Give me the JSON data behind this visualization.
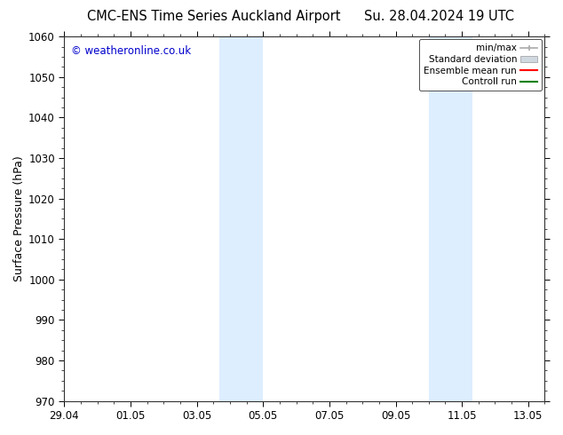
{
  "title_left": "CMC-ENS Time Series Auckland Airport",
  "title_right": "Su. 28.04.2024 19 UTC",
  "ylabel": "Surface Pressure (hPa)",
  "ylim": [
    970,
    1060
  ],
  "yticks": [
    970,
    980,
    990,
    1000,
    1010,
    1020,
    1030,
    1040,
    1050,
    1060
  ],
  "xtick_positions": [
    0,
    2,
    4,
    6,
    8,
    10,
    12,
    14
  ],
  "xtick_labels": [
    "29.04",
    "01.05",
    "03.05",
    "05.05",
    "07.05",
    "09.05",
    "11.05",
    "13.05"
  ],
  "xlim": [
    0,
    14.5
  ],
  "shaded_bands": [
    {
      "xstart": 4.67,
      "xend": 5.33
    },
    {
      "xstart": 5.33,
      "xend": 6.0
    },
    {
      "xstart": 11.0,
      "xend": 11.67
    },
    {
      "xstart": 11.67,
      "xend": 12.33
    }
  ],
  "shaded_color": "#ddeeff",
  "watermark_text": "© weatheronline.co.uk",
  "watermark_color": "#0000cc",
  "legend_labels": [
    "min/max",
    "Standard deviation",
    "Ensemble mean run",
    "Controll run"
  ],
  "legend_colors": [
    "#aaaaaa",
    "#cccccc",
    "#ff0000",
    "#008000"
  ],
  "background_color": "#ffffff",
  "plot_bg_color": "#ffffff",
  "title_fontsize": 10.5,
  "axis_label_fontsize": 9,
  "tick_fontsize": 8.5
}
